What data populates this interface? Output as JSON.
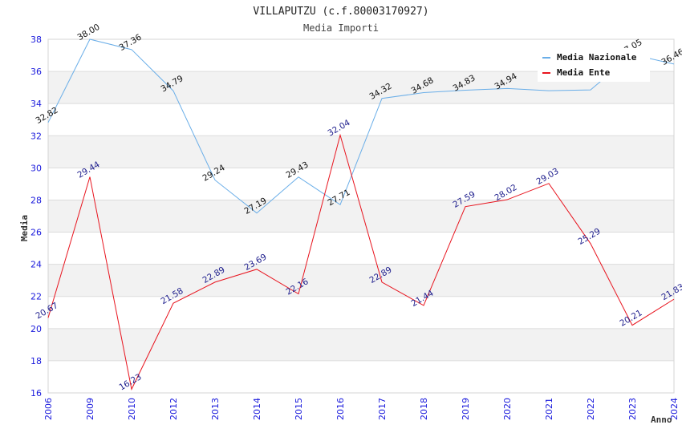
{
  "chart_data": {
    "type": "line",
    "title": "VILLAPUTZU (c.f.80003170927)",
    "subtitle": "Media Importi",
    "xlabel": "Anno",
    "ylabel": "Media",
    "ylim": [
      16,
      38
    ],
    "yticks": [
      16,
      18,
      20,
      22,
      24,
      26,
      28,
      30,
      32,
      34,
      36,
      38
    ],
    "grid": true,
    "legend_position": "top-right",
    "categories": [
      "2006",
      "2009",
      "2010",
      "2012",
      "2013",
      "2014",
      "2015",
      "2016",
      "2017",
      "2018",
      "2019",
      "2020",
      "2021",
      "2022",
      "2023",
      "2024"
    ],
    "series": [
      {
        "name": "Media Nazionale",
        "color": "#6aaee8",
        "values": [
          32.82,
          38.0,
          37.36,
          34.79,
          29.24,
          27.19,
          29.43,
          27.71,
          34.32,
          34.68,
          34.83,
          34.94,
          34.8,
          34.85,
          37.05,
          36.46
        ],
        "labels": [
          "32.82",
          "38.00",
          "37.36",
          "34.79",
          "29.24",
          "27.19",
          "29.43",
          "27.71",
          "34.32",
          "34.68",
          "34.83",
          "34.94",
          "",
          "",
          "37.05",
          "36.46"
        ]
      },
      {
        "name": "Media Ente",
        "color": "#e8141e",
        "values": [
          20.67,
          29.44,
          16.23,
          21.58,
          22.89,
          23.69,
          22.16,
          32.04,
          22.89,
          21.44,
          27.59,
          28.02,
          29.03,
          25.29,
          20.21,
          21.83
        ],
        "labels": [
          "20.67",
          "29.44",
          "16.23",
          "21.58",
          "22.89",
          "23.69",
          "22.16",
          "32.04",
          "22.89",
          "21.44",
          "27.59",
          "28.02",
          "29.03",
          "25.29",
          "20.21",
          "21.83"
        ]
      }
    ]
  }
}
